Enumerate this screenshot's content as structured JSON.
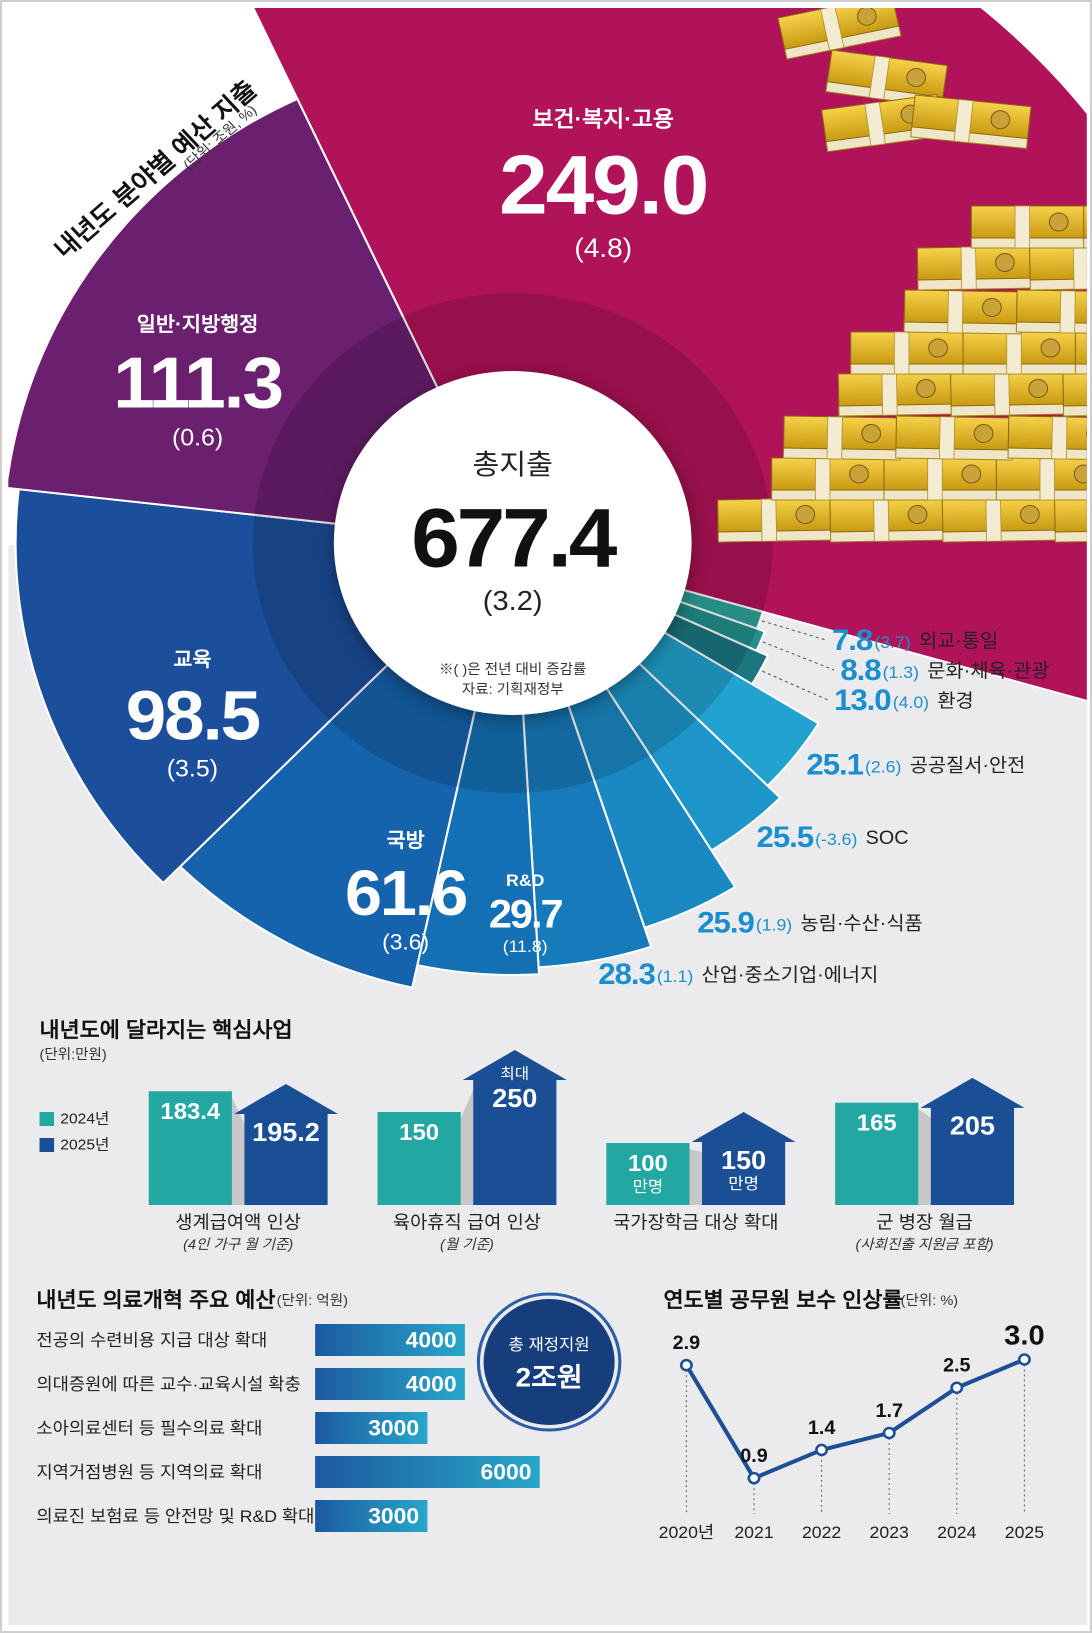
{
  "chart_data": [
    {
      "type": "radial",
      "title": "내년도 분야별 예산 지출",
      "subtitle": "(단위: 조원, %)",
      "center_label": "총지출",
      "center_value": 677.4,
      "center_change_label": "(3.2)",
      "note": "※( )은 전년 대비 증감률",
      "source": "자료: 기획재정부",
      "categories": [
        "보건·복지·고용",
        "외교·통일",
        "문화·체육·관광",
        "환경",
        "공공질서·안전",
        "SOC",
        "농림·수산·식품",
        "산업·중소기업·에너지",
        "R&D",
        "국방",
        "교육",
        "일반·지방행정"
      ],
      "values": [
        249.0,
        7.8,
        8.8,
        13.0,
        25.1,
        25.5,
        25.9,
        28.3,
        29.7,
        61.6,
        98.5,
        111.3
      ],
      "value_labels": [
        "249.0",
        "7.8",
        "8.8",
        "13.0",
        "25.1",
        "25.5",
        "25.9",
        "28.3",
        "29.7",
        "61.6",
        "98.5",
        "111.3"
      ],
      "change_labels": [
        "(4.8)",
        "(3.7)",
        "(1.3)",
        "(4.0)",
        "(2.6)",
        "(-3.6)",
        "(1.9)",
        "(1.1)",
        "(11.8)",
        "(3.6)",
        "(3.5)",
        "(0.6)"
      ],
      "colors": [
        "#b01359",
        "#2fa39c",
        "#22908f",
        "#1b7680",
        "#22a2cf",
        "#1e95ca",
        "#1a88c3",
        "#177bbb",
        "#1470b4",
        "#1562ad",
        "#1b4f9b",
        "#6a1f6f"
      ]
    },
    {
      "type": "bar",
      "title": "내년도에 달라지는 핵심사업",
      "subtitle": "(단위:만원)",
      "categories": [
        "생계급여액 인상",
        "육아휴직 급여 인상",
        "국가장학금 대상 확대",
        "군 병장 월급"
      ],
      "sublabels": [
        "(4인 가구 월 기준)",
        "(월 기준)",
        null,
        "(사회진출 지원금 포함)"
      ],
      "series": [
        {
          "name": "2024년",
          "color": "#23a7a2",
          "values": [
            183.4,
            150,
            100,
            165
          ],
          "unit_labels": [
            null,
            null,
            "만명",
            null
          ]
        },
        {
          "name": "2025년",
          "color": "#1b4f95",
          "values": [
            195.2,
            250,
            150,
            205
          ],
          "unit_labels": [
            null,
            null,
            "만명",
            null
          ],
          "prefix_labels": [
            null,
            "최대",
            null,
            null
          ]
        }
      ]
    },
    {
      "type": "hbar",
      "title": "내년도 의료개혁 주요 예산",
      "subtitle": "(단위: 억원)",
      "categories": [
        "전공의 수련비용 지급 대상 확대",
        "의대증원에 따른 교수·교육시설 확충",
        "소아의료센터 등 필수의료 확대",
        "지역거점병원 등 지역의료 확대",
        "의료진 보험료 등 안전망 및 R&D 확대"
      ],
      "values": [
        4000,
        4000,
        3000,
        6000,
        3000
      ],
      "color": "#1f86c0",
      "badge_title": "총 재정지원",
      "badge_text": "2조원"
    },
    {
      "type": "line",
      "title": "연도별 공무원 보수 인상률",
      "subtitle": "(단위: %)",
      "categories": [
        "2020년",
        "2021",
        "2022",
        "2023",
        "2024",
        "2025"
      ],
      "values": [
        2.9,
        0.9,
        1.4,
        1.7,
        2.5,
        3.0
      ],
      "value_labels": [
        "2.9",
        "0.9",
        "1.4",
        "1.7",
        "2.5",
        "3.0"
      ],
      "color": "#1d4f96"
    }
  ]
}
